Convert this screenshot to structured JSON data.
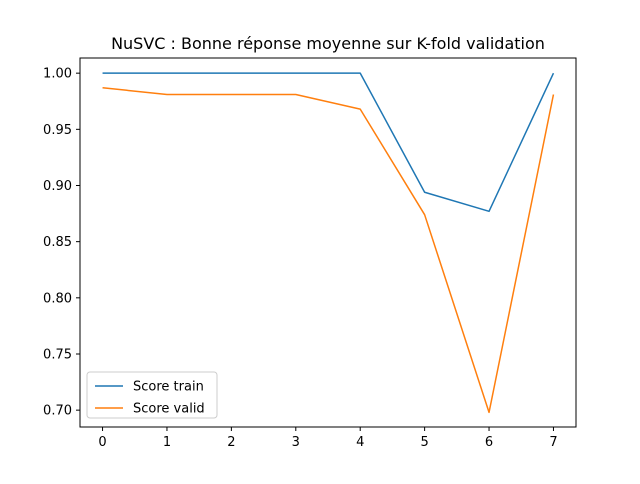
{
  "chart_data": {
    "type": "line",
    "title": "NuSVC : Bonne réponse moyenne sur K-fold validation",
    "xlabel": "",
    "ylabel": "",
    "x": [
      0,
      1,
      2,
      3,
      4,
      5,
      6,
      7
    ],
    "series": [
      {
        "name": "Score train",
        "color": "#1f77b4",
        "values": [
          1.0,
          1.0,
          1.0,
          1.0,
          1.0,
          0.894,
          0.877,
          1.0
        ]
      },
      {
        "name": "Score valid",
        "color": "#ff7f0e",
        "values": [
          0.987,
          0.981,
          0.981,
          0.981,
          0.968,
          0.874,
          0.698,
          0.981
        ]
      }
    ],
    "xlim": [
      -0.35,
      7.35
    ],
    "ylim": [
      0.685,
      1.0135
    ],
    "xticks": [
      "0",
      "1",
      "2",
      "3",
      "4",
      "5",
      "6",
      "7"
    ],
    "yticks": [
      "0.70",
      "0.75",
      "0.80",
      "0.85",
      "0.90",
      "0.95",
      "1.00"
    ],
    "grid": false,
    "legend_position": "lower-left"
  }
}
